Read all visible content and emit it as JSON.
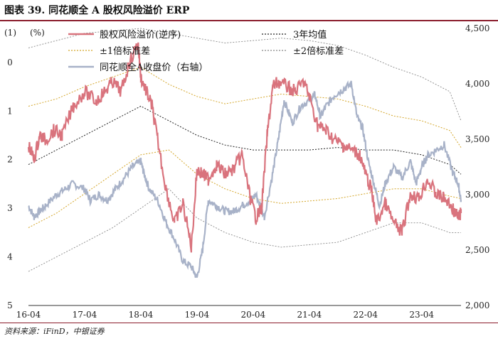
{
  "title": "图表 39. 同花顺全 A 股权风险溢价 ERP",
  "source": "资料来源：iFinD，中银证券",
  "chart_data": {
    "type": "line",
    "left_axis": {
      "marker": "(1)",
      "unit": "(%)",
      "ticks": [
        0,
        1,
        2,
        3,
        4,
        5
      ],
      "reversed": true,
      "range": [
        -0.7,
        5
      ]
    },
    "right_axis": {
      "ticks": [
        "2,000",
        "2,500",
        "3,000",
        "3,500",
        "4,000",
        "4,500"
      ],
      "range": [
        2000,
        4500
      ]
    },
    "x_ticks": [
      "16-04",
      "17-04",
      "18-04",
      "19-04",
      "20-04",
      "21-04",
      "22-04",
      "23-04"
    ],
    "x_range": [
      2016.0,
      2023.7
    ],
    "colors": {
      "erp": "#d9737d",
      "mean": "#222222",
      "sd1": "#d4a62a",
      "sd2": "#888888",
      "index": "#a8b2c8"
    },
    "legend": {
      "erp": "股权风险溢价(逆序)",
      "mean": "3年均值",
      "sd1": "±1倍标准差",
      "sd2": "±2倍标准差",
      "index": "同花顺全A收盘价（右轴）"
    },
    "series": {
      "erp": {
        "x": [
          2016.0,
          2016.1,
          2016.2,
          2016.3,
          2016.45,
          2016.6,
          2016.8,
          2017.0,
          2017.2,
          2017.35,
          2017.5,
          2017.65,
          2017.8,
          2017.95,
          2018.0,
          2018.1,
          2018.2,
          2018.3,
          2018.45,
          2018.6,
          2018.75,
          2018.9,
          2019.0,
          2019.1,
          2019.2,
          2019.35,
          2019.5,
          2019.65,
          2019.8,
          2019.95,
          2020.05,
          2020.15,
          2020.25,
          2020.35,
          2020.45,
          2020.6,
          2020.75,
          2020.9,
          2021.0,
          2021.15,
          2021.3,
          2021.45,
          2021.6,
          2021.75,
          2021.9,
          2022.0,
          2022.1,
          2022.2,
          2022.35,
          2022.5,
          2022.65,
          2022.8,
          2022.95,
          2023.1,
          2023.25,
          2023.4,
          2023.55,
          2023.65,
          2023.7
        ],
        "y": [
          1.7,
          2.0,
          1.5,
          1.6,
          1.4,
          1.5,
          0.9,
          0.6,
          0.8,
          0.6,
          0.4,
          0.6,
          0.0,
          -0.4,
          0.3,
          0.6,
          0.9,
          1.6,
          2.6,
          3.3,
          2.9,
          3.8,
          2.2,
          2.3,
          2.4,
          2.1,
          2.3,
          2.2,
          1.9,
          2.8,
          3.2,
          3.0,
          1.5,
          0.5,
          0.4,
          0.5,
          0.6,
          0.4,
          0.7,
          1.3,
          1.4,
          1.6,
          1.7,
          1.8,
          1.9,
          2.3,
          2.6,
          3.3,
          2.9,
          3.3,
          3.5,
          2.7,
          2.8,
          2.4,
          2.7,
          2.8,
          3.0,
          3.2,
          3.1
        ]
      },
      "mean": {
        "x": [
          2016.0,
          2016.5,
          2017.0,
          2017.5,
          2018.0,
          2018.5,
          2019.0,
          2019.5,
          2020.0,
          2020.5,
          2021.0,
          2021.5,
          2022.0,
          2022.5,
          2023.0,
          2023.5,
          2023.7
        ],
        "y": [
          2.1,
          1.8,
          1.5,
          1.2,
          0.9,
          1.2,
          1.5,
          1.7,
          1.8,
          1.8,
          1.8,
          1.75,
          1.8,
          1.8,
          1.9,
          2.1,
          2.3
        ]
      },
      "sd1_upper": {
        "x": [
          2016.0,
          2016.5,
          2017.0,
          2017.5,
          2018.0,
          2018.5,
          2019.0,
          2019.5,
          2020.0,
          2020.5,
          2021.0,
          2021.5,
          2022.0,
          2022.5,
          2023.0,
          2023.5,
          2023.7
        ],
        "y": [
          0.9,
          0.75,
          0.5,
          0.3,
          0.1,
          0.45,
          0.7,
          0.85,
          0.75,
          0.65,
          0.7,
          0.75,
          0.9,
          1.1,
          1.2,
          1.4,
          1.75
        ]
      },
      "sd1_lower": {
        "x": [
          2016.0,
          2016.5,
          2017.0,
          2017.5,
          2018.0,
          2018.5,
          2019.0,
          2019.5,
          2020.0,
          2020.5,
          2021.0,
          2021.5,
          2022.0,
          2022.5,
          2023.0,
          2023.5,
          2023.7
        ],
        "y": [
          3.4,
          3.1,
          2.7,
          2.3,
          1.9,
          1.8,
          2.3,
          2.6,
          2.8,
          2.9,
          2.85,
          2.8,
          2.7,
          2.6,
          2.6,
          2.75,
          2.8
        ]
      },
      "sd2_upper": {
        "x": [
          2016.0,
          2016.5,
          2017.0,
          2017.5,
          2018.0,
          2018.5,
          2019.0,
          2019.5,
          2020.0,
          2020.5,
          2021.0,
          2021.5,
          2022.0,
          2022.5,
          2023.0,
          2023.5,
          2023.7
        ],
        "y": [
          -0.3,
          -0.45,
          -0.6,
          -0.65,
          -0.7,
          -0.6,
          -0.5,
          -0.4,
          -0.45,
          -0.5,
          -0.45,
          -0.35,
          -0.15,
          0.1,
          0.3,
          0.6,
          1.2
        ]
      },
      "sd2_lower": {
        "x": [
          2016.0,
          2016.5,
          2017.0,
          2017.5,
          2018.0,
          2018.5,
          2019.0,
          2019.5,
          2020.0,
          2020.5,
          2021.0,
          2021.5,
          2022.0,
          2022.5,
          2023.0,
          2023.5,
          2023.7
        ],
        "y": [
          4.3,
          4.0,
          3.7,
          3.4,
          3.0,
          2.6,
          3.2,
          3.5,
          3.7,
          3.8,
          3.75,
          3.7,
          3.5,
          3.3,
          3.3,
          3.5,
          3.5
        ]
      },
      "index": {
        "x": [
          2016.0,
          2016.1,
          2016.2,
          2016.3,
          2016.5,
          2016.65,
          2016.8,
          2017.0,
          2017.1,
          2017.25,
          2017.4,
          2017.55,
          2017.7,
          2017.85,
          2018.0,
          2018.05,
          2018.15,
          2018.3,
          2018.45,
          2018.6,
          2018.75,
          2018.9,
          2019.0,
          2019.1,
          2019.2,
          2019.35,
          2019.5,
          2019.65,
          2019.8,
          2019.95,
          2020.05,
          2020.2,
          2020.35,
          2020.45,
          2020.55,
          2020.7,
          2020.85,
          2021.0,
          2021.1,
          2021.2,
          2021.3,
          2021.45,
          2021.6,
          2021.75,
          2021.85,
          2021.95,
          2022.05,
          2022.15,
          2022.25,
          2022.35,
          2022.5,
          2022.65,
          2022.8,
          2022.9,
          2023.0,
          2023.1,
          2023.25,
          2023.4,
          2023.55,
          2023.65,
          2023.7
        ],
        "y": [
          2900,
          2800,
          2850,
          2900,
          3000,
          3050,
          3100,
          3050,
          2950,
          3000,
          2950,
          3050,
          3150,
          3250,
          3300,
          3200,
          3050,
          2950,
          2750,
          2600,
          2400,
          2350,
          2250,
          2500,
          2950,
          2900,
          2850,
          2850,
          2900,
          2950,
          3000,
          2800,
          3200,
          3500,
          3850,
          3650,
          3800,
          3850,
          3900,
          3700,
          3800,
          3900,
          3950,
          4000,
          3700,
          3600,
          3300,
          3100,
          2900,
          3100,
          3250,
          3150,
          3300,
          3100,
          3250,
          3350,
          3400,
          3450,
          3200,
          3100,
          2950
        ]
      }
    }
  }
}
